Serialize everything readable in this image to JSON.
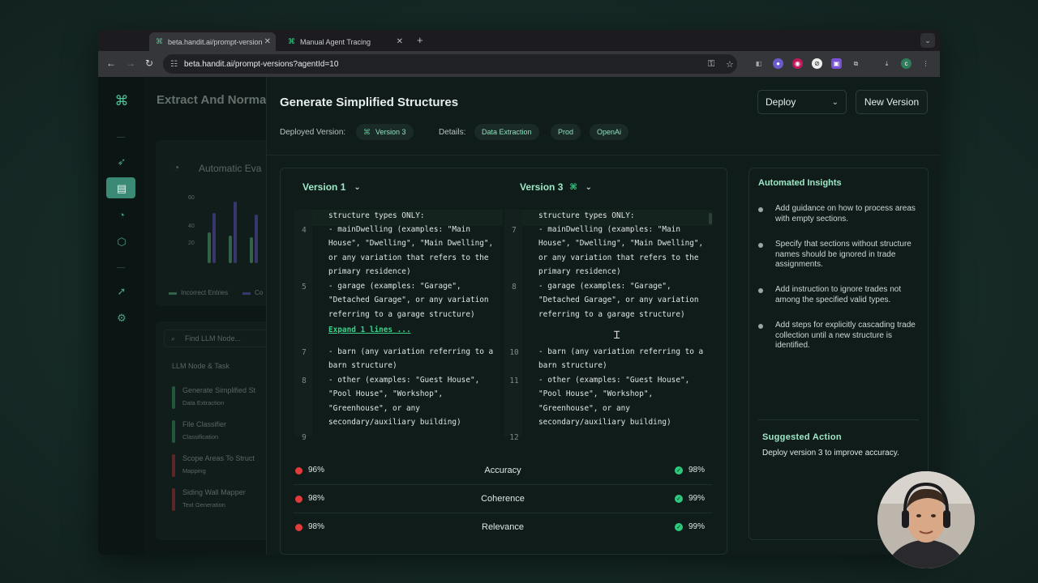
{
  "browser": {
    "tabs": [
      {
        "title": "beta.handit.ai/prompt-version",
        "active": true
      },
      {
        "title": "Manual Agent Tracing",
        "active": false
      }
    ],
    "url": "beta.handit.ai/prompt-versions?agentId=10"
  },
  "background_page": {
    "title": "Extract And Norma",
    "card_title": "Automatic Eva",
    "chart_ticks": [
      "60",
      "40",
      "20"
    ],
    "legend": [
      "Incorrect Entries",
      "Co"
    ],
    "search_placeholder": "Find LLM Node...",
    "list_header": "LLM Node & Task",
    "nodes": [
      {
        "name": "Generate Simplified St",
        "task": "Data Extraction",
        "color": "#3fa46a"
      },
      {
        "name": "File Classifier",
        "task": "Classification",
        "color": "#3fa46a"
      },
      {
        "name": "Scope Areas To Struct",
        "task": "Mapping",
        "color": "#b83a3a"
      },
      {
        "name": "Siding Wall Mapper",
        "task": "Text Generation",
        "color": "#b83a3a"
      }
    ]
  },
  "panel": {
    "title": "Generate Simplified Structures",
    "deploy_label": "Deploy",
    "new_version_label": "New Version",
    "deployed_version_label": "Deployed Version:",
    "deployed_version": "Version 3",
    "details_label": "Details:",
    "details": [
      "Data Extraction",
      "Prod",
      "OpenAi"
    ]
  },
  "diff": {
    "left_version": "Version 1",
    "right_version": "Version 3",
    "expand_label": "Expand 1 lines ...",
    "left_top": "structure types ONLY:",
    "right_top": "structure types ONLY:",
    "left_blocks": [
      {
        "ln": "4",
        "text": "- mainDwelling (examples: \"Main\nHouse\", \"Dwelling\", \"Main Dwelling\",\nor any variation that refers to the\nprimary residence)"
      },
      {
        "ln": "5",
        "text": "- garage (examples: \"Garage\",\n\"Detached Garage\", or any variation\nreferring to a garage structure)"
      },
      {
        "ln": "7",
        "text": "- barn (any variation referring to a\nbarn structure)"
      },
      {
        "ln": "8",
        "text": "- other (examples: \"Guest House\",\n\"Pool House\", \"Workshop\",\n\"Greenhouse\", or any\nsecondary/auxiliary building)"
      },
      {
        "ln": "9",
        "text": ""
      }
    ],
    "right_blocks": [
      {
        "ln": "7",
        "text": "- mainDwelling (examples: \"Main\nHouse\", \"Dwelling\", \"Main Dwelling\",\nor any variation that refers to the\nprimary residence)"
      },
      {
        "ln": "8",
        "text": "- garage (examples: \"Garage\",\n\"Detached Garage\", or any variation\nreferring to a garage structure)"
      },
      {
        "ln": "10",
        "text": "- barn (any variation referring to a\nbarn structure)"
      },
      {
        "ln": "11",
        "text": "- other (examples: \"Guest House\",\n\"Pool House\", \"Workshop\",\n\"Greenhouse\", or any\nsecondary/auxiliary building)"
      },
      {
        "ln": "12",
        "text": ""
      }
    ],
    "metrics": [
      {
        "name": "Accuracy",
        "left": "96%",
        "right": "98%"
      },
      {
        "name": "Coherence",
        "left": "98%",
        "right": "99%"
      },
      {
        "name": "Relevance",
        "left": "98%",
        "right": "99%"
      }
    ]
  },
  "insights": {
    "title": "Automated Insights",
    "items": [
      "Add guidance on how to process areas with empty sections.",
      "Specify that sections without structure names should be ignored in trade assignments.",
      "Add instruction to ignore trades not among the specified valid types.",
      "Add steps for explicitly cascading trade collection until a new structure is identified."
    ],
    "suggested_title": "Suggested Action",
    "suggested_text": "Deploy version 3 to improve accuracy."
  },
  "colors": {
    "accent": "#3ad08a",
    "danger": "#e23b3b",
    "success": "#2fc97d"
  }
}
